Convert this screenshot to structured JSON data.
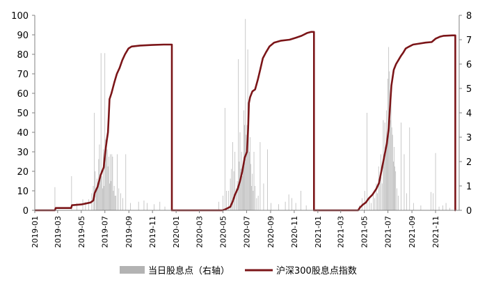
{
  "chart_data": {
    "type": "bar+line",
    "title": "",
    "x_tick_labels": [
      "2019-01",
      "2019-03",
      "2019-05",
      "2019-07",
      "2019-09",
      "2019-11",
      "2020-01",
      "2020-03",
      "2020-05",
      "2020-07",
      "2020-09",
      "2020-11",
      "2021-01",
      "2021-03",
      "2021-05",
      "2021-07",
      "2021-09",
      "2021-11"
    ],
    "y_left": {
      "min": 0,
      "max": 100,
      "ticks": [
        0,
        10,
        20,
        30,
        40,
        50,
        60,
        70,
        80,
        90,
        100
      ]
    },
    "y_right": {
      "min": 0,
      "max": 8,
      "ticks": [
        0,
        1,
        2,
        3,
        4,
        5,
        6,
        7,
        8
      ]
    },
    "grid": false,
    "legend_position": "bottom",
    "colors": {
      "bar": "#b3b3b3",
      "line": "#7b1518"
    },
    "series": [
      {
        "name": "当日股息点（右轴）",
        "kind": "bar",
        "axis": "right",
        "points": [
          [
            "2019-02-22",
            0.95
          ],
          [
            "2019-04-06",
            1.4
          ],
          [
            "2019-04-20",
            0.3
          ],
          [
            "2019-05-05",
            0.45
          ],
          [
            "2019-05-12",
            0.35
          ],
          [
            "2019-05-20",
            0.45
          ],
          [
            "2019-05-28",
            0.7
          ],
          [
            "2019-06-01",
            1.0
          ],
          [
            "2019-06-04",
            4.0
          ],
          [
            "2019-06-06",
            1.6
          ],
          [
            "2019-06-09",
            0.8
          ],
          [
            "2019-06-11",
            1.3
          ],
          [
            "2019-06-13",
            1.1
          ],
          [
            "2019-06-15",
            2.1
          ],
          [
            "2019-06-17",
            2.7
          ],
          [
            "2019-06-19",
            1.5
          ],
          [
            "2019-06-21",
            6.45
          ],
          [
            "2019-06-23",
            1.4
          ],
          [
            "2019-06-25",
            0.9
          ],
          [
            "2019-06-27",
            2.5
          ],
          [
            "2019-06-29",
            1.0
          ],
          [
            "2019-07-01",
            6.45
          ],
          [
            "2019-07-03",
            2.9
          ],
          [
            "2019-07-05",
            2.6
          ],
          [
            "2019-07-07",
            2.5
          ],
          [
            "2019-07-09",
            1.8
          ],
          [
            "2019-07-11",
            2.2
          ],
          [
            "2019-07-13",
            1.1
          ],
          [
            "2019-07-15",
            2.3
          ],
          [
            "2019-07-17",
            1.2
          ],
          [
            "2019-07-19",
            2.3
          ],
          [
            "2019-07-21",
            2.2
          ],
          [
            "2019-07-23",
            0.8
          ],
          [
            "2019-07-25",
            1.0
          ],
          [
            "2019-07-27",
            0.6
          ],
          [
            "2019-07-29",
            0.6
          ],
          [
            "2019-08-02",
            2.3
          ],
          [
            "2019-08-06",
            0.9
          ],
          [
            "2019-08-11",
            0.7
          ],
          [
            "2019-08-16",
            0.5
          ],
          [
            "2019-08-24",
            2.3
          ],
          [
            "2019-09-05",
            0.3
          ],
          [
            "2019-09-26",
            0.35
          ],
          [
            "2019-10-10",
            0.4
          ],
          [
            "2019-10-18",
            0.3
          ],
          [
            "2019-11-05",
            0.25
          ],
          [
            "2019-11-20",
            0.35
          ],
          [
            "2019-12-03",
            0.15
          ],
          [
            "2020-04-20",
            0.35
          ],
          [
            "2020-05-01",
            0.6
          ],
          [
            "2020-05-06",
            4.2
          ],
          [
            "2020-05-10",
            0.8
          ],
          [
            "2020-05-15",
            0.8
          ],
          [
            "2020-05-20",
            1.3
          ],
          [
            "2020-05-23",
            1.7
          ],
          [
            "2020-05-26",
            2.8
          ],
          [
            "2020-05-29",
            1.6
          ],
          [
            "2020-06-01",
            2.4
          ],
          [
            "2020-06-04",
            0.9
          ],
          [
            "2020-06-07",
            1.2
          ],
          [
            "2020-06-10",
            6.2
          ],
          [
            "2020-06-12",
            2.0
          ],
          [
            "2020-06-14",
            3.2
          ],
          [
            "2020-06-16",
            1.7
          ],
          [
            "2020-06-18",
            2.4
          ],
          [
            "2020-06-20",
            1.4
          ],
          [
            "2020-06-22",
            1.8
          ],
          [
            "2020-06-24",
            4.1
          ],
          [
            "2020-06-26",
            3.5
          ],
          [
            "2020-06-28",
            7.85
          ],
          [
            "2020-06-30",
            3.1
          ],
          [
            "2020-07-02",
            3.5
          ],
          [
            "2020-07-04",
            6.6
          ],
          [
            "2020-07-06",
            3.2
          ],
          [
            "2020-07-08",
            2.4
          ],
          [
            "2020-07-10",
            3.0
          ],
          [
            "2020-07-12",
            1.9
          ],
          [
            "2020-07-14",
            1.0
          ],
          [
            "2020-07-16",
            1.5
          ],
          [
            "2020-07-18",
            0.8
          ],
          [
            "2020-07-20",
            2.4
          ],
          [
            "2020-07-23",
            1.0
          ],
          [
            "2020-07-27",
            0.5
          ],
          [
            "2020-07-31",
            0.6
          ],
          [
            "2020-08-05",
            2.8
          ],
          [
            "2020-08-14",
            1.1
          ],
          [
            "2020-08-24",
            2.5
          ],
          [
            "2020-09-02",
            0.3
          ],
          [
            "2020-09-22",
            0.25
          ],
          [
            "2020-10-09",
            0.35
          ],
          [
            "2020-10-18",
            0.65
          ],
          [
            "2020-10-26",
            0.5
          ],
          [
            "2020-11-05",
            0.3
          ],
          [
            "2020-11-18",
            0.8
          ],
          [
            "2020-12-02",
            0.2
          ],
          [
            "2021-04-18",
            0.2
          ],
          [
            "2021-04-25",
            0.5
          ],
          [
            "2021-05-02",
            0.8
          ],
          [
            "2021-05-08",
            4.0
          ],
          [
            "2021-05-14",
            0.5
          ],
          [
            "2021-05-19",
            0.3
          ],
          [
            "2021-05-24",
            0.7
          ],
          [
            "2021-05-28",
            0.5
          ],
          [
            "2021-06-01",
            1.1
          ],
          [
            "2021-06-04",
            0.7
          ],
          [
            "2021-06-07",
            1.8
          ],
          [
            "2021-06-10",
            1.4
          ],
          [
            "2021-06-13",
            2.3
          ],
          [
            "2021-06-16",
            1.1
          ],
          [
            "2021-06-19",
            3.7
          ],
          [
            "2021-06-21",
            2.3
          ],
          [
            "2021-06-23",
            3.6
          ],
          [
            "2021-06-25",
            2.4
          ],
          [
            "2021-06-27",
            4.1
          ],
          [
            "2021-06-29",
            2.9
          ],
          [
            "2021-07-01",
            5.4
          ],
          [
            "2021-07-03",
            6.7
          ],
          [
            "2021-07-05",
            5.7
          ],
          [
            "2021-07-07",
            3.7
          ],
          [
            "2021-07-09",
            4.8
          ],
          [
            "2021-07-11",
            3.4
          ],
          [
            "2021-07-13",
            3.1
          ],
          [
            "2021-07-15",
            2.0
          ],
          [
            "2021-07-17",
            2.6
          ],
          [
            "2021-07-19",
            1.8
          ],
          [
            "2021-07-21",
            1.6
          ],
          [
            "2021-07-24",
            0.9
          ],
          [
            "2021-07-28",
            0.6
          ],
          [
            "2021-08-04",
            3.6
          ],
          [
            "2021-08-12",
            2.3
          ],
          [
            "2021-08-18",
            0.7
          ],
          [
            "2021-08-26",
            3.4
          ],
          [
            "2021-09-05",
            0.3
          ],
          [
            "2021-09-24",
            0.2
          ],
          [
            "2021-10-20",
            0.75
          ],
          [
            "2021-10-26",
            0.7
          ],
          [
            "2021-11-01",
            2.35
          ],
          [
            "2021-11-10",
            0.15
          ],
          [
            "2021-11-20",
            0.2
          ],
          [
            "2021-11-28",
            0.3
          ],
          [
            "2021-12-08",
            0.1
          ]
        ]
      },
      {
        "name": "沪深300股息点指数",
        "kind": "line",
        "axis": "left",
        "points": [
          [
            "2019-01-01",
            0
          ],
          [
            "2019-02-22",
            0
          ],
          [
            "2019-02-24",
            1.2
          ],
          [
            "2019-04-05",
            1.2
          ],
          [
            "2019-04-07",
            2.6
          ],
          [
            "2019-05-01",
            3.0
          ],
          [
            "2019-05-25",
            4.0
          ],
          [
            "2019-06-01",
            5.0
          ],
          [
            "2019-06-05",
            9.0
          ],
          [
            "2019-06-12",
            12.0
          ],
          [
            "2019-06-20",
            18.0
          ],
          [
            "2019-06-28",
            22.0
          ],
          [
            "2019-07-02",
            30.0
          ],
          [
            "2019-07-06",
            36.0
          ],
          [
            "2019-07-09",
            40.0
          ],
          [
            "2019-07-11",
            48.0
          ],
          [
            "2019-07-13",
            57.0
          ],
          [
            "2019-07-18",
            60.0
          ],
          [
            "2019-07-22",
            63.0
          ],
          [
            "2019-07-26",
            66.0
          ],
          [
            "2019-08-01",
            70.0
          ],
          [
            "2019-08-08",
            73.0
          ],
          [
            "2019-08-15",
            77.0
          ],
          [
            "2019-08-22",
            80.0
          ],
          [
            "2019-08-31",
            83.0
          ],
          [
            "2019-09-08",
            84.0
          ],
          [
            "2019-09-30",
            84.5
          ],
          [
            "2019-10-31",
            84.8
          ],
          [
            "2019-11-30",
            85.0
          ],
          [
            "2019-12-21",
            85.0
          ],
          [
            "2019-12-22",
            0
          ],
          [
            "2020-04-30",
            0
          ],
          [
            "2020-05-06",
            0.4
          ],
          [
            "2020-05-20",
            1.8
          ],
          [
            "2020-05-26",
            4.5
          ],
          [
            "2020-06-01",
            8.0
          ],
          [
            "2020-06-08",
            11.0
          ],
          [
            "2020-06-14",
            15.0
          ],
          [
            "2020-06-20",
            20.0
          ],
          [
            "2020-06-26",
            27.0
          ],
          [
            "2020-07-02",
            30.0
          ],
          [
            "2020-07-05",
            42.0
          ],
          [
            "2020-07-07",
            55.0
          ],
          [
            "2020-07-10",
            58.0
          ],
          [
            "2020-07-16",
            61.0
          ],
          [
            "2020-07-23",
            62.0
          ],
          [
            "2020-07-30",
            67.0
          ],
          [
            "2020-08-05",
            72.0
          ],
          [
            "2020-08-12",
            78.0
          ],
          [
            "2020-08-20",
            81.0
          ],
          [
            "2020-08-29",
            84.0
          ],
          [
            "2020-09-10",
            86.0
          ],
          [
            "2020-09-28",
            87.0
          ],
          [
            "2020-10-20",
            87.5
          ],
          [
            "2020-11-05",
            88.5
          ],
          [
            "2020-11-20",
            89.5
          ],
          [
            "2020-12-05",
            91.0
          ],
          [
            "2020-12-15",
            91.5
          ],
          [
            "2020-12-22",
            91.5
          ],
          [
            "2020-12-23",
            0
          ],
          [
            "2021-04-15",
            0
          ],
          [
            "2021-04-20",
            1.5
          ],
          [
            "2021-04-28",
            3.0
          ],
          [
            "2021-05-05",
            4.0
          ],
          [
            "2021-05-12",
            6.0
          ],
          [
            "2021-05-22",
            8.0
          ],
          [
            "2021-06-01",
            11.0
          ],
          [
            "2021-06-08",
            14.0
          ],
          [
            "2021-06-15",
            21.0
          ],
          [
            "2021-06-22",
            28.0
          ],
          [
            "2021-06-28",
            34.0
          ],
          [
            "2021-07-03",
            42.0
          ],
          [
            "2021-07-06",
            52.0
          ],
          [
            "2021-07-10",
            64.0
          ],
          [
            "2021-07-16",
            72.0
          ],
          [
            "2021-07-22",
            75.0
          ],
          [
            "2021-07-28",
            77.0
          ],
          [
            "2021-08-03",
            79.0
          ],
          [
            "2021-08-10",
            81.0
          ],
          [
            "2021-08-16",
            83.0
          ],
          [
            "2021-08-25",
            84.0
          ],
          [
            "2021-09-04",
            85.0
          ],
          [
            "2021-09-20",
            85.5
          ],
          [
            "2021-10-06",
            86.0
          ],
          [
            "2021-10-22",
            86.3
          ],
          [
            "2021-11-01",
            88.0
          ],
          [
            "2021-11-12",
            89.0
          ],
          [
            "2021-11-22",
            89.5
          ],
          [
            "2021-12-14",
            89.7
          ],
          [
            "2021-12-22",
            89.7
          ],
          [
            "2021-12-23",
            0
          ]
        ]
      }
    ]
  }
}
